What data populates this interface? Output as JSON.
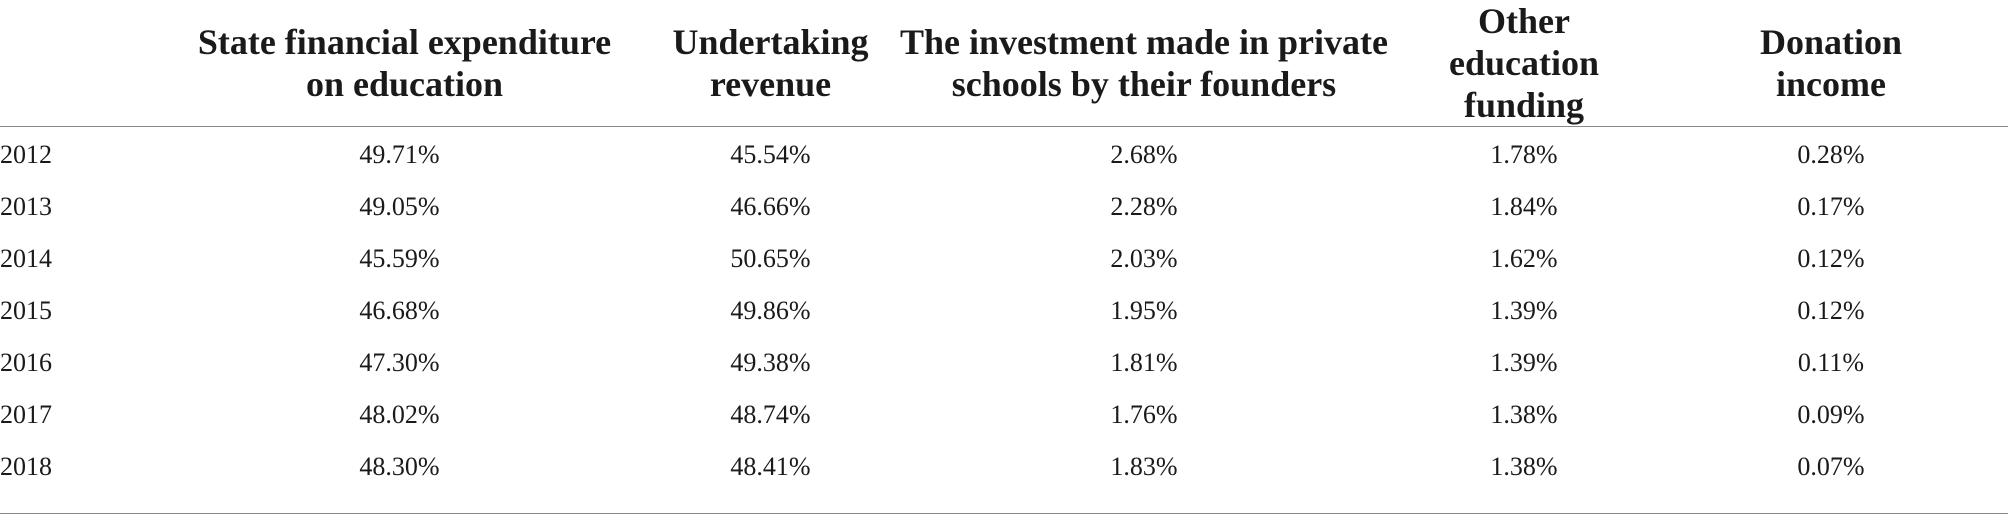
{
  "table": {
    "headers": [
      "",
      "State financial expenditure on education",
      "Undertaking revenue",
      "The investment made in private schools by their founders",
      "Other education funding",
      "Donation income"
    ],
    "rows": [
      [
        "2012",
        "49.71%",
        "45.54%",
        "2.68%",
        "1.78%",
        "0.28%"
      ],
      [
        "2013",
        "49.05%",
        "46.66%",
        "2.28%",
        "1.84%",
        "0.17%"
      ],
      [
        "2014",
        "45.59%",
        "50.65%",
        "2.03%",
        "1.62%",
        "0.12%"
      ],
      [
        "2015",
        "46.68%",
        "49.86%",
        "1.95%",
        "1.39%",
        "0.12%"
      ],
      [
        "2016",
        "47.30%",
        "49.38%",
        "1.81%",
        "1.39%",
        "0.11%"
      ],
      [
        "2017",
        "48.02%",
        "48.74%",
        "1.76%",
        "1.38%",
        "0.09%"
      ],
      [
        "2018",
        "48.30%",
        "48.41%",
        "1.83%",
        "1.38%",
        "0.07%"
      ]
    ]
  }
}
